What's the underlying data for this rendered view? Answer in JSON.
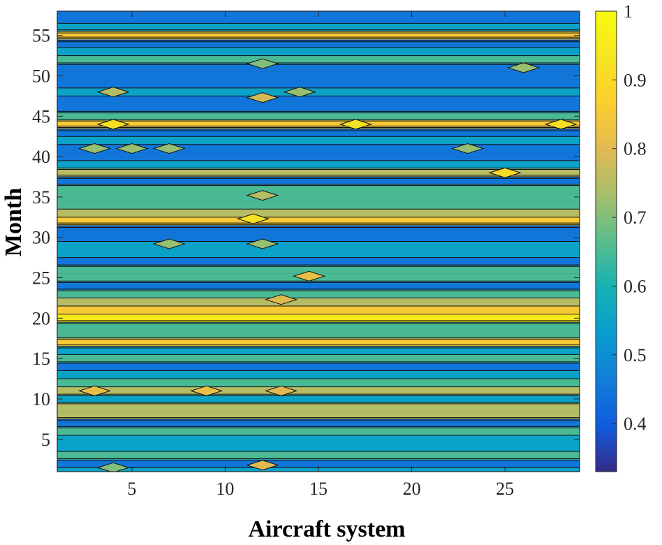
{
  "chart_data": {
    "type": "heatmap",
    "subtype": "filled-contour",
    "xlabel": "Aircraft system",
    "ylabel": "Month",
    "xlim": [
      1,
      29
    ],
    "ylim": [
      1,
      58
    ],
    "x_ticks": [
      5,
      10,
      15,
      20,
      25
    ],
    "y_ticks": [
      5,
      10,
      15,
      20,
      25,
      30,
      35,
      40,
      45,
      50,
      55
    ],
    "colorbar": {
      "range": [
        0.33,
        1.0
      ],
      "ticks": [
        0.4,
        0.5,
        0.6,
        0.7,
        0.8,
        0.9,
        1
      ],
      "tick_labels": [
        "0.4",
        "0.5",
        "0.6",
        "0.7",
        "0.8",
        "0.9",
        "1"
      ],
      "colormap": "parula",
      "position": "right"
    },
    "contour_levels": [
      0.4,
      0.5,
      0.6,
      0.7,
      0.8,
      0.9
    ],
    "month_values": [
      0.55,
      0.45,
      0.6,
      0.5,
      0.58,
      0.62,
      0.48,
      0.7,
      0.78,
      0.58,
      0.72,
      0.6,
      0.55,
      0.48,
      0.6,
      0.52,
      0.88,
      0.65,
      0.62,
      0.9,
      0.85,
      0.7,
      0.62,
      0.4,
      0.6,
      0.68,
      0.48,
      0.52,
      0.58,
      0.48,
      0.45,
      0.82,
      0.78,
      0.6,
      0.62,
      0.6,
      0.48,
      0.72,
      0.58,
      0.48,
      0.45,
      0.52,
      0.45,
      0.88,
      0.6,
      0.45,
      0.4,
      0.55,
      0.48,
      0.42,
      0.4,
      0.62,
      0.55,
      0.45,
      0.88,
      0.55,
      0.48,
      0.45
    ],
    "local_features": [
      {
        "x": 17,
        "y": 44,
        "value": 0.92
      },
      {
        "x": 28,
        "y": 44,
        "value": 0.92
      },
      {
        "x": 4,
        "y": 44,
        "value": 0.92
      },
      {
        "x": 11.5,
        "y": 32.3,
        "value": 0.92
      },
      {
        "x": 12,
        "y": 47.3,
        "value": 0.78
      },
      {
        "x": 13,
        "y": 22.3,
        "value": 0.8
      },
      {
        "x": 14.5,
        "y": 25.2,
        "value": 0.82
      },
      {
        "x": 25,
        "y": 38,
        "value": 0.9
      },
      {
        "x": 3,
        "y": 11,
        "value": 0.82
      },
      {
        "x": 9,
        "y": 11,
        "value": 0.82
      },
      {
        "x": 13,
        "y": 11,
        "value": 0.8
      },
      {
        "x": 12,
        "y": 35.2,
        "value": 0.75
      },
      {
        "x": 4,
        "y": 48,
        "value": 0.75
      },
      {
        "x": 14,
        "y": 48,
        "value": 0.72
      },
      {
        "x": 3,
        "y": 41,
        "value": 0.72
      },
      {
        "x": 5,
        "y": 41,
        "value": 0.72
      },
      {
        "x": 7,
        "y": 41,
        "value": 0.72
      },
      {
        "x": 23,
        "y": 41,
        "value": 0.72
      },
      {
        "x": 7,
        "y": 29.2,
        "value": 0.72
      },
      {
        "x": 12,
        "y": 29.2,
        "value": 0.72
      },
      {
        "x": 26,
        "y": 51,
        "value": 0.72
      },
      {
        "x": 12,
        "y": 1.8,
        "value": 0.8
      },
      {
        "x": 4,
        "y": 1.5,
        "value": 0.7
      },
      {
        "x": 12,
        "y": 51.5,
        "value": 0.7
      }
    ]
  }
}
